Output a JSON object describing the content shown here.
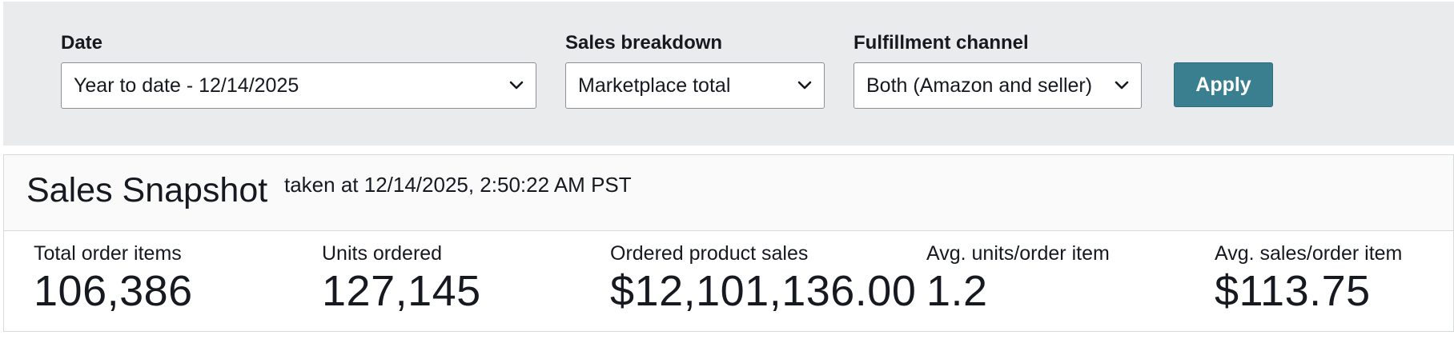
{
  "filters": {
    "date": {
      "label": "Date",
      "value": "Year to date - 12/14/2025",
      "icon": "chevron-down-icon"
    },
    "sales_breakdown": {
      "label": "Sales breakdown",
      "value": "Marketplace total",
      "icon": "chevron-down-icon"
    },
    "fulfillment_channel": {
      "label": "Fulfillment channel",
      "value": "Both (Amazon and seller)",
      "icon": "chevron-down-icon"
    },
    "apply_label": "Apply"
  },
  "snapshot": {
    "title": "Sales Snapshot",
    "taken_at": "taken at 12/14/2025, 2:50:22 AM PST",
    "metrics": [
      {
        "label": "Total order items",
        "value": "106,386"
      },
      {
        "label": "Units ordered",
        "value": "127,145"
      },
      {
        "label": "Ordered product sales",
        "value": "$12,101,136.00"
      },
      {
        "label": "Avg. units/order item",
        "value": "1.2"
      },
      {
        "label": "Avg. sales/order item",
        "value": "$113.75"
      }
    ]
  },
  "colors": {
    "filter_background": "#e9ebed",
    "apply_button": "#3a7f8f",
    "text": "#16191f",
    "header_background": "#fafafa"
  }
}
